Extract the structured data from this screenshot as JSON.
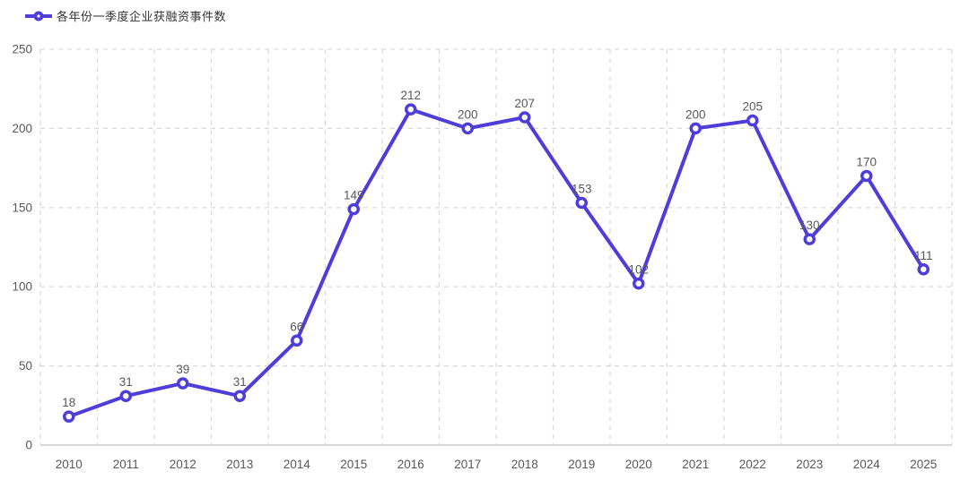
{
  "legend": {
    "label": "各年份一季度企业获融资事件数"
  },
  "chart_data": {
    "type": "line",
    "title": "",
    "xlabel": "",
    "ylabel": "",
    "categories": [
      "2010",
      "2011",
      "2012",
      "2013",
      "2014",
      "2015",
      "2016",
      "2017",
      "2018",
      "2019",
      "2020",
      "2021",
      "2022",
      "2023",
      "2024",
      "2025"
    ],
    "series": [
      {
        "name": "各年份一季度企业获融资事件数",
        "values": [
          18,
          31,
          39,
          31,
          66,
          149,
          212,
          200,
          207,
          153,
          102,
          200,
          205,
          130,
          170,
          111
        ]
      }
    ],
    "ylim": [
      0,
      250
    ],
    "yticks": [
      0,
      50,
      100,
      150,
      200,
      250
    ],
    "grid": true,
    "grid_style": "dashed",
    "legend_position": "top-left",
    "colors": {
      "line": "#4E3CDB",
      "marker_fill": "#FFFFFF",
      "grid": "#D9D9D9",
      "axis": "#CCCCCC",
      "data_label": "#595959",
      "tick_label": "#595959",
      "legend_text": "#333333"
    }
  }
}
